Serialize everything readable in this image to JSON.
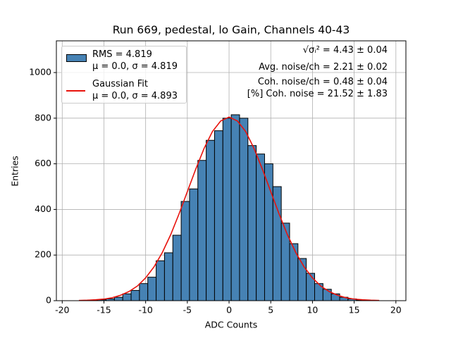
{
  "chart_data": {
    "type": "histogram",
    "title": "Run 669, pedestal, lo Gain, Channels 40-43",
    "xlabel": "ADC Counts",
    "ylabel": "Entries",
    "xlim": [
      -20.7,
      21.2
    ],
    "ylim": [
      0,
      1139
    ],
    "xticks": [
      -20,
      -15,
      -10,
      -5,
      0,
      5,
      10,
      15,
      20
    ],
    "yticks": [
      0,
      200,
      400,
      600,
      800,
      1000
    ],
    "grid": true,
    "legend": "upper left",
    "annotations": [
      "√σᵢ² = 4.43 ± 0.04",
      "Avg. noise/ch = 2.21 ± 0.02",
      "Coh. noise/ch = 0.48 ± 0.04",
      "[%] Coh. noise = 21.52 ± 1.83"
    ],
    "series": [
      {
        "type": "histogram",
        "name": "RMS = 4.819\nμ = 0.0, σ = 4.819",
        "color": "#4682b4",
        "bins": [
          -18.74,
          -17.74,
          -16.74,
          -15.74,
          -14.74,
          -13.74,
          -12.74,
          -11.74,
          -10.74,
          -9.74,
          -8.74,
          -7.74,
          -6.74,
          -5.74,
          -4.74,
          -3.74,
          -2.74,
          -1.74,
          -0.74,
          0.26,
          1.26,
          2.26,
          3.26,
          4.26,
          5.26,
          6.26,
          7.26,
          8.26,
          9.26,
          10.26,
          11.26,
          12.26,
          13.26,
          14.26,
          15.26,
          16.26,
          17.26,
          18.26
        ],
        "values": [
          0,
          1,
          2,
          4,
          8,
          15,
          30,
          45,
          75,
          103,
          175,
          210,
          287,
          435,
          490,
          615,
          703,
          745,
          800,
          815,
          800,
          680,
          643,
          600,
          500,
          340,
          250,
          185,
          120,
          75,
          50,
          30,
          15,
          8,
          3,
          1,
          0
        ]
      },
      {
        "type": "line",
        "name": "Gaussian Fit\nμ = 0.0, σ = 4.893",
        "color": "#e8120c",
        "x": [
          -18,
          -17,
          -16,
          -15,
          -14,
          -13,
          -12,
          -11,
          -10,
          -9,
          -8,
          -7,
          -6,
          -5,
          -4,
          -3,
          -2,
          -1,
          0,
          1,
          2,
          3,
          4,
          5,
          6,
          7,
          8,
          9,
          10,
          11,
          12,
          13,
          14,
          15,
          16,
          17,
          18
        ],
        "values": [
          1,
          2,
          4,
          7,
          13,
          24,
          40,
          64,
          100,
          148,
          211,
          289,
          380,
          478,
          576,
          667,
          741,
          788,
          805,
          788,
          741,
          667,
          576,
          478,
          380,
          289,
          211,
          148,
          100,
          64,
          40,
          24,
          13,
          7,
          4,
          2,
          1
        ]
      }
    ]
  }
}
